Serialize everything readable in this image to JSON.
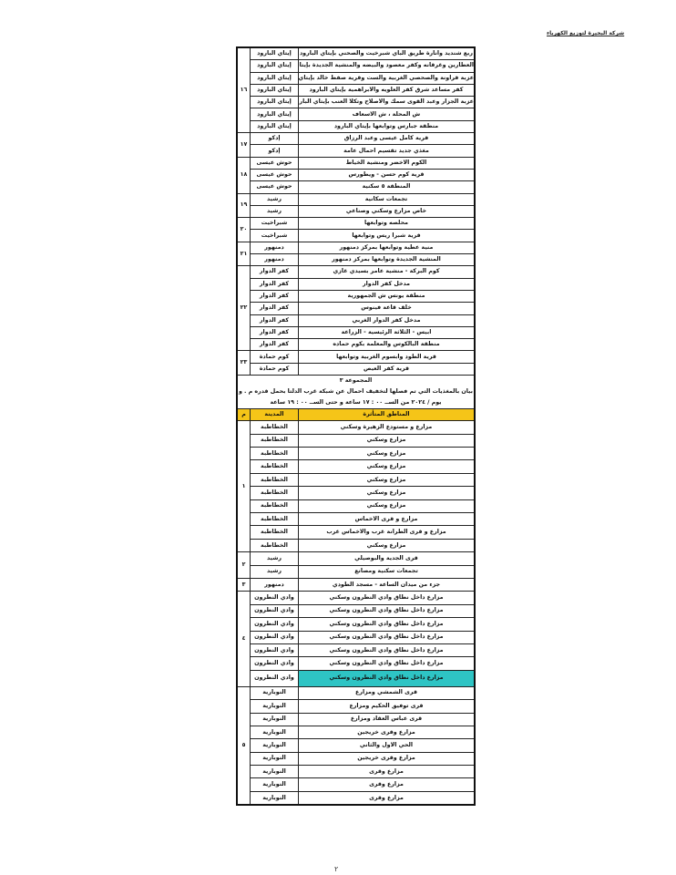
{
  "company_header": "شركة البحيرة لتوزيع الكهرباء",
  "page_number": "٢",
  "colors": {
    "header_fill": "#f5c518",
    "highlight_fill": "#2ec4c4"
  },
  "section_a": [
    {
      "num": "١٦",
      "rows": [
        {
          "city": "إيتاي البارود",
          "area": "ربع شندید وانارة طریق الباي شبرخیت والصحني بإیتاي البارود"
        },
        {
          "city": "إيتاي البارود",
          "area": "العطارين وغرقانه وكفر معصود والبيضه والمنشية الجديدة بإيتاي البارود"
        },
        {
          "city": "إيتاي البارود",
          "area": "عزبة قراونة والصحصي الغربية والست وقرية صفط خالد بإيتاي البارود"
        },
        {
          "city": "إيتاي البارود",
          "area": "كفر مساعد شرق كفر العلويه والابراهمية بإيتاي البارود"
        },
        {
          "city": "إيتاي البارود",
          "area": "عزبة الجزار وعبد القوى سمك والاصلاح وتكلا العنب بإيتاي البارود"
        },
        {
          "city": "إيتاي البارود",
          "area": "ش المحلة ، ش الاسعاف"
        },
        {
          "city": "إيتاي البارود",
          "area": "منطقة جبارس وتوابعها بإيتاي البارود"
        }
      ]
    },
    {
      "num": "١٧",
      "rows": [
        {
          "city": "إدكو",
          "area": "قرية كامل عيسى وعبد الرزاق"
        },
        {
          "city": "إدكو",
          "area": "مغذي جديد تقسيم احمال عامة"
        }
      ]
    },
    {
      "num": "١٨",
      "rows": [
        {
          "city": "حوش عيسى",
          "area": "الكوم الاخضر ومنشية الخياط"
        },
        {
          "city": "حوش عيسى",
          "area": "قرية كوم حسن - ويطورس"
        },
        {
          "city": "حوش عيسى",
          "area": "المنطقة ٥ سكنية"
        }
      ]
    },
    {
      "num": "١٩",
      "rows": [
        {
          "city": "رشيد",
          "area": "تجمعات سكانية"
        },
        {
          "city": "رشيد",
          "area": "خاص مزارع وسكني وصناعي"
        }
      ]
    },
    {
      "num": "٢٠",
      "rows": [
        {
          "city": "شبراخيت",
          "area": "محلصه وتوابعها"
        },
        {
          "city": "شبراخيت",
          "area": "قرية شبرا ريس وتوابعها"
        }
      ]
    },
    {
      "num": "٢١",
      "rows": [
        {
          "city": "دمنهور",
          "area": "منية عطية وتوابعها بمركز دمنهور"
        },
        {
          "city": "دمنهور",
          "area": "المنشية الجديدة وتوابعها بمركز دمنهور"
        }
      ]
    },
    {
      "num": "٢٢",
      "rows": [
        {
          "city": "كفر الدوار",
          "area": "كوم البركة - منشية عامر بسيدي غازي"
        },
        {
          "city": "كفر الدوار",
          "area": "مدخل كفر الدوار"
        },
        {
          "city": "كفر الدوار",
          "area": "منطقة يونس ش الجمهورية"
        },
        {
          "city": "كفر الدوار",
          "area": "خلف قاعة فينوس"
        },
        {
          "city": "كفر الدوار",
          "area": "مدخل كفر الدوار الغربي"
        },
        {
          "city": "كفر الدوار",
          "area": "ابيس - الثلاثة الرئيسية - الزراعة"
        },
        {
          "city": "كفر الدوار",
          "area": "منطقة البالكوس والمعلمة بكوم حماده"
        }
      ]
    },
    {
      "num": "٢٣",
      "rows": [
        {
          "city": "كوم حمادة",
          "area": "قرية الطود وابسوم الغربية وتوابعها"
        },
        {
          "city": "كوم حمادة",
          "area": "قرية كفر العيص"
        }
      ]
    }
  ],
  "note": {
    "title": "المجموعة ٣",
    "line1": "بيان بالمغذيات التي تم فصلها لتخفيف احمال عن شبكة غرب الدلتا بحمل قدره م . و",
    "line2": "يوم / ٢٠٢٤ من الســ ٠٠ : ١٧ ساعة و حتى الســ ٠٠ : ١٩ ساعة"
  },
  "header": {
    "num": "م",
    "city": "المدينة",
    "area": "المناطق المتأثرة"
  },
  "section_b": [
    {
      "num": "١",
      "rows": [
        {
          "city": "الخطاطبة",
          "area": "مزارع و مستودع الزهيرة وسكني"
        },
        {
          "city": "الخطاطبة",
          "area": "مزارع وسكني"
        },
        {
          "city": "الخطاطبة",
          "area": "مزارع وسكني"
        },
        {
          "city": "الخطاطبة",
          "area": "مزارع وسكني"
        },
        {
          "city": "الخطاطبة",
          "area": "مزارع وسكني"
        },
        {
          "city": "الخطاطبة",
          "area": "مزارع وسكني"
        },
        {
          "city": "الخطاطبة",
          "area": "مزارع وسكني"
        },
        {
          "city": "الخطاطبة",
          "area": "مزارع و قرى الاخماس"
        },
        {
          "city": "الخطاطبة",
          "area": "مزارع و قرى الطرانة غرب والاخماس غرب"
        },
        {
          "city": "الخطاطبة",
          "area": "مزارع وسكني"
        }
      ]
    },
    {
      "num": "٢",
      "rows": [
        {
          "city": "رشيد",
          "area": "قرى الجدية والبوصيلي"
        },
        {
          "city": "رشيد",
          "area": "تجمعات سكنية ومصانع"
        }
      ]
    },
    {
      "num": "٣",
      "rows": [
        {
          "city": "دمنهور",
          "area": "جزء من ميدان الساعة - مسجد الطودي"
        }
      ]
    },
    {
      "num": "٤",
      "rows": [
        {
          "city": "وادي النطرون",
          "area": "مزارع داخل نطاق وادي النطرون وسكني"
        },
        {
          "city": "وادي النطرون",
          "area": "مزارع داخل نطاق وادي النطرون وسكني"
        },
        {
          "city": "وادي النطرون",
          "area": "مزارع داخل نطاق وادي النطرون وسكني"
        },
        {
          "city": "وادي النطرون",
          "area": "مزارع داخل نطاق وادي النطرون وسكني"
        },
        {
          "city": "وادي النطرون",
          "area": "مزارع داخل نطاق وادي النطرون وسكني"
        },
        {
          "city": "وادي النطرون",
          "area": "مزارع داخل نطاق وادي النطرون وسكني"
        },
        {
          "city": "وادي النطرون",
          "area": "مزارع داخل نطاق وادي النطرون وسكني",
          "highlight": true
        }
      ]
    },
    {
      "num": "٥",
      "rows": [
        {
          "city": "النوبارية",
          "area": "قرى الشمشي ومزارع"
        },
        {
          "city": "النوبارية",
          "area": "قرى توفيق الحكيم ومزارع"
        },
        {
          "city": "النوبارية",
          "area": "قرى عباس العقاد ومزارع"
        },
        {
          "city": "النوبارية",
          "area": "مزارع وقرى خريجين"
        },
        {
          "city": "النوبارية",
          "area": "الحي الاول والثاني"
        },
        {
          "city": "النوبارية",
          "area": "مزارع وقرى خريجين"
        },
        {
          "city": "النوبارية",
          "area": "مزارع وقرى"
        },
        {
          "city": "النوبارية",
          "area": "مزارع وقرى"
        },
        {
          "city": "النوبارية",
          "area": "مزارع وقرى"
        }
      ]
    }
  ]
}
